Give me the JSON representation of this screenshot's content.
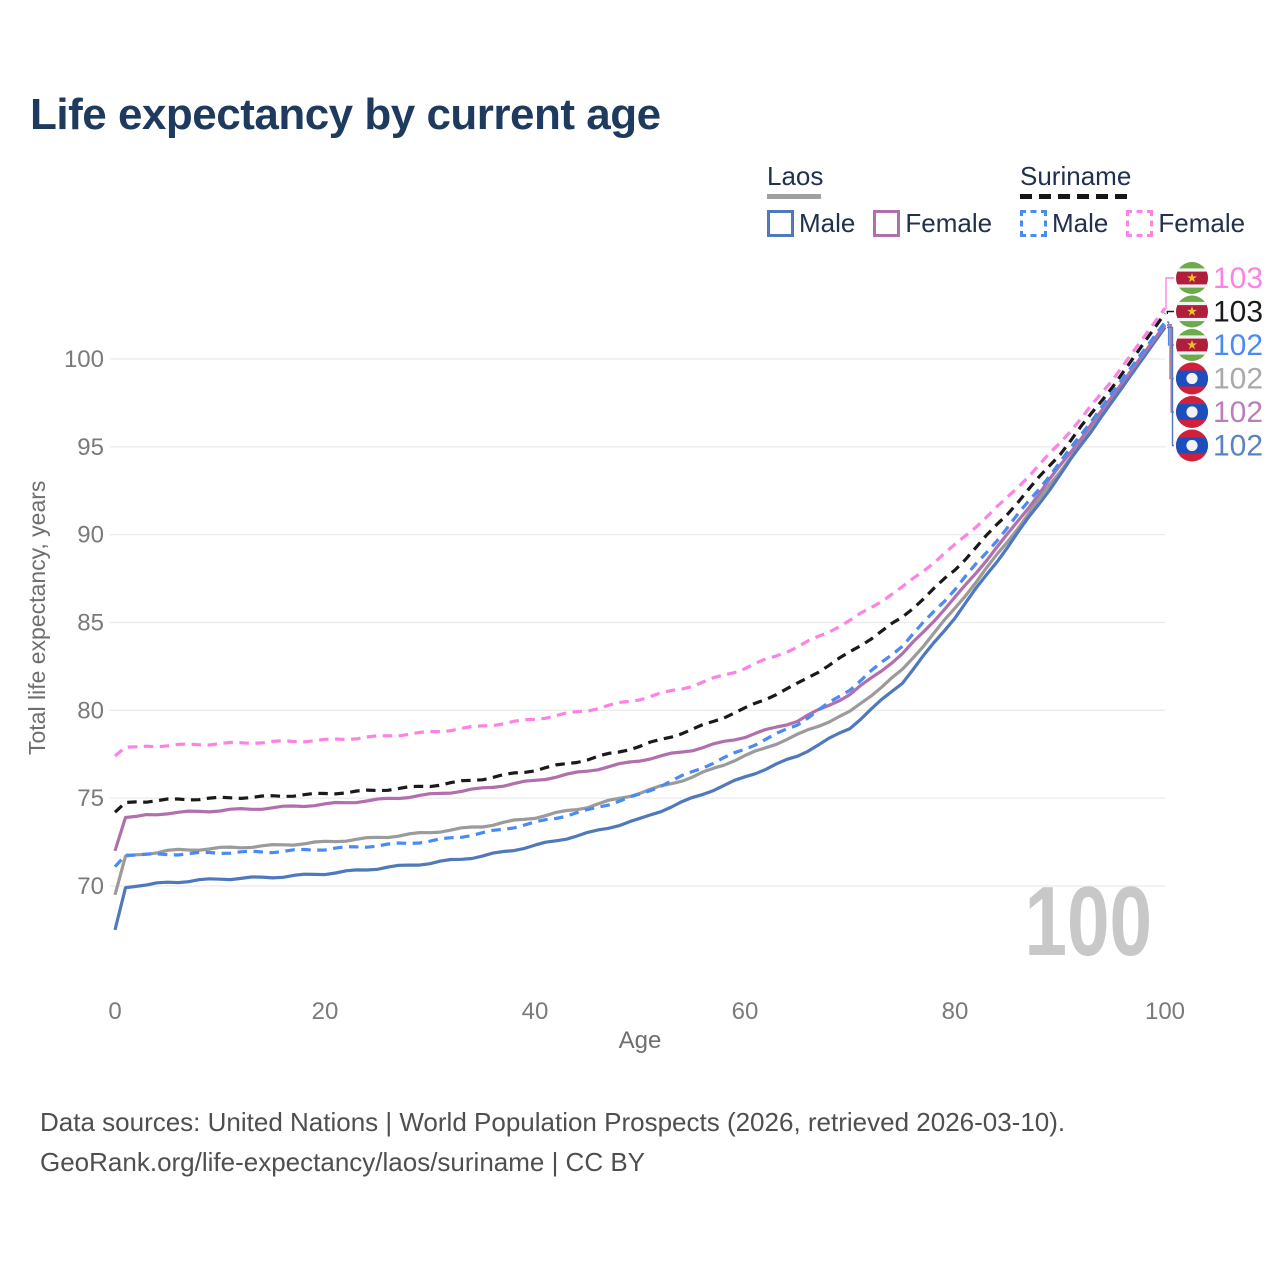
{
  "title": "Life expectancy by current age",
  "legend": {
    "groups": [
      {
        "label": "Laos",
        "underline_color": "#a0a0a0",
        "underline_style": "solid",
        "items": [
          {
            "label": "Male",
            "color": "#4f79bb",
            "dash": false
          },
          {
            "label": "Female",
            "color": "#b26fae",
            "dash": false
          }
        ]
      },
      {
        "label": "Suriname",
        "underline_color": "#161616",
        "underline_style": "dashed",
        "items": [
          {
            "label": "Male",
            "color": "#4a8af4",
            "dash": true
          },
          {
            "label": "Female",
            "color": "#fc83e3",
            "dash": true
          }
        ]
      }
    ]
  },
  "watermark": "100",
  "footer": {
    "line1": "Data sources: United Nations | World Population Prospects (2026, retrieved 2026-03-10).",
    "line2": "GeoRank.org/life-expectancy/laos/suriname | CC BY"
  },
  "chart_data": {
    "type": "line",
    "title": "Life expectancy by current age",
    "xlabel": "Age",
    "ylabel": "Total life expectancy, years",
    "xlim": [
      0,
      100
    ],
    "ylim": [
      66,
      104
    ],
    "x_ticks": [
      0,
      20,
      40,
      60,
      80,
      100
    ],
    "y_ticks": [
      70,
      75,
      80,
      85,
      90,
      95,
      100
    ],
    "grid": "horizontal",
    "legend_position": "top-right",
    "ages": [
      0,
      1,
      5,
      10,
      15,
      20,
      25,
      30,
      35,
      40,
      45,
      50,
      55,
      60,
      65,
      70,
      75,
      80,
      85,
      90,
      95,
      100
    ],
    "series": [
      {
        "key": "laos_all",
        "name": "Laos",
        "country": "Laos",
        "sex": "all",
        "color": "#9b9b9b",
        "dash": false,
        "flag": "laos",
        "end_label": "102",
        "label_color": "#a9a9a9",
        "values": [
          69.5,
          71.7,
          72.0,
          72.15,
          72.3,
          72.5,
          72.75,
          73.05,
          73.4,
          73.9,
          74.5,
          75.3,
          76.2,
          77.4,
          78.6,
          79.9,
          82.3,
          85.8,
          89.6,
          93.6,
          97.7,
          101.9
        ]
      },
      {
        "key": "laos_male",
        "name": "Laos Male",
        "country": "Laos",
        "sex": "male",
        "color": "#4f79bb",
        "dash": false,
        "flag": "laos",
        "end_label": "102",
        "label_color": "#5b82c4",
        "values": [
          67.5,
          69.9,
          70.2,
          70.4,
          70.5,
          70.7,
          71.0,
          71.3,
          71.7,
          72.3,
          73.0,
          73.8,
          75.0,
          76.2,
          77.4,
          79.0,
          81.6,
          85.3,
          89.3,
          93.4,
          97.6,
          101.8
        ]
      },
      {
        "key": "laos_female",
        "name": "Laos Female",
        "country": "Laos",
        "sex": "female",
        "color": "#b26fae",
        "dash": false,
        "flag": "laos",
        "end_label": "102",
        "label_color": "#bd7dbd",
        "values": [
          72.0,
          73.9,
          74.15,
          74.3,
          74.45,
          74.65,
          74.9,
          75.2,
          75.55,
          76.0,
          76.55,
          77.15,
          77.75,
          78.5,
          79.4,
          80.9,
          83.2,
          86.4,
          90.0,
          93.9,
          97.9,
          101.95
        ]
      },
      {
        "key": "suriname_all",
        "name": "Suriname",
        "country": "Suriname",
        "sex": "all",
        "color": "#1a1a1a",
        "dash": true,
        "flag": "suriname",
        "end_label": "103",
        "label_color": "#1a1a1a",
        "values": [
          74.2,
          74.75,
          74.9,
          75.0,
          75.1,
          75.25,
          75.45,
          75.7,
          76.1,
          76.6,
          77.2,
          77.95,
          78.9,
          80.1,
          81.5,
          83.3,
          85.3,
          88.0,
          91.2,
          94.6,
          98.4,
          102.6
        ]
      },
      {
        "key": "suriname_male",
        "name": "Suriname Male",
        "country": "Suriname",
        "sex": "male",
        "color": "#4a8af4",
        "dash": true,
        "flag": "suriname",
        "end_label": "102",
        "label_color": "#4a8af4",
        "values": [
          71.1,
          71.75,
          71.8,
          71.9,
          71.95,
          72.1,
          72.3,
          72.55,
          73.0,
          73.6,
          74.3,
          75.2,
          76.5,
          77.8,
          79.2,
          81.2,
          83.7,
          86.9,
          90.4,
          94.1,
          98.1,
          102.1
        ]
      },
      {
        "key": "suriname_female",
        "name": "Suriname Female",
        "country": "Suriname",
        "sex": "female",
        "color": "#fc83e3",
        "dash": true,
        "flag": "suriname",
        "end_label": "103",
        "label_color": "#fc83e3",
        "values": [
          77.4,
          77.9,
          78.0,
          78.1,
          78.2,
          78.3,
          78.5,
          78.75,
          79.1,
          79.5,
          80.0,
          80.65,
          81.4,
          82.4,
          83.6,
          85.1,
          87.0,
          89.4,
          92.1,
          95.2,
          98.8,
          102.9
        ]
      }
    ],
    "end_rows": [
      "suriname_female",
      "suriname_all",
      "suriname_male",
      "laos_all",
      "laos_female",
      "laos_male"
    ],
    "flag_colors": {
      "laos_red": "#d41f3b",
      "laos_blue": "#1d4fbc",
      "laos_white": "#f2f2f2",
      "suriname_green": "#6caa4c",
      "suriname_red": "#b01e3c",
      "suriname_white": "#f2f2f2",
      "suriname_star": "#e8c229"
    }
  }
}
